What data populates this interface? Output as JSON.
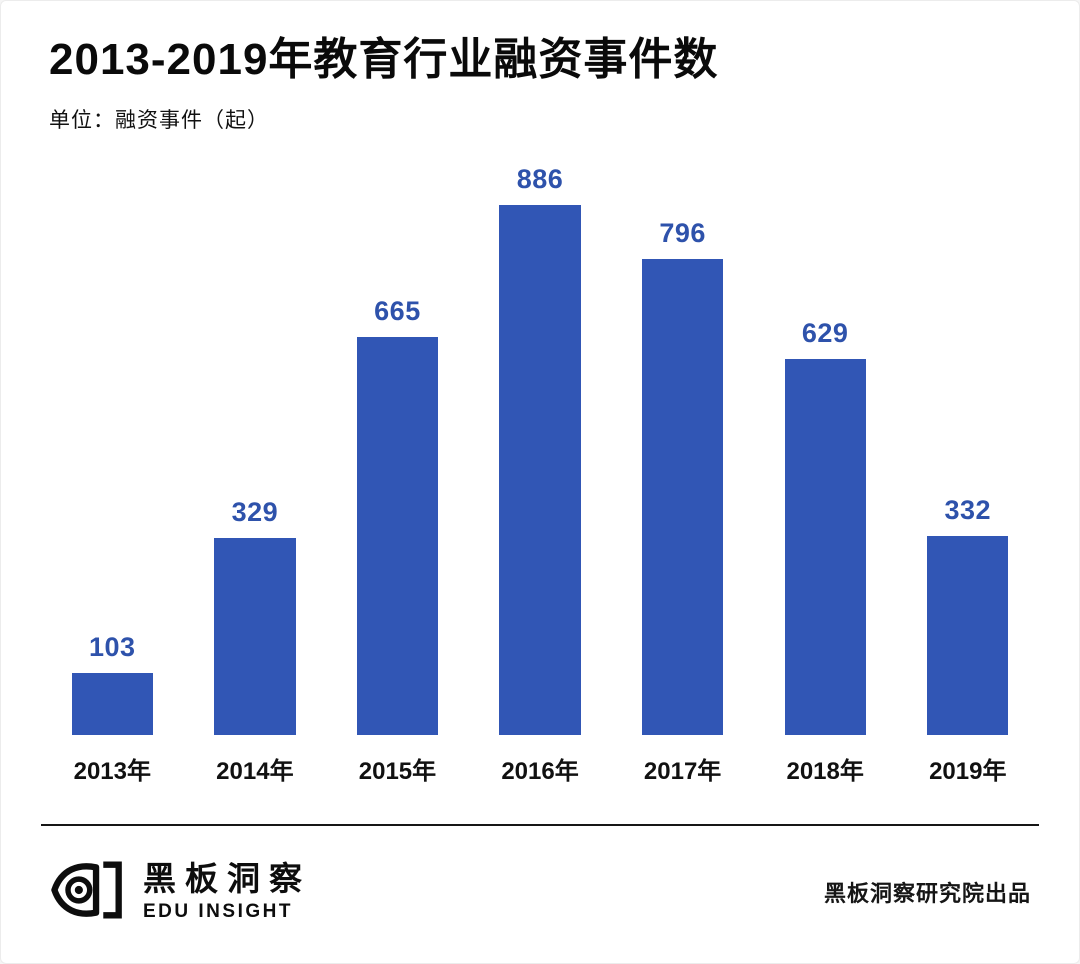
{
  "header": {
    "title": "2013-2019年教育行业融资事件数",
    "unit": "单位：融资事件（起）"
  },
  "chart_data": {
    "type": "bar",
    "title": "2013-2019年教育行业融资事件数",
    "unit_label": "单位：融资事件（起）",
    "categories": [
      "2013年",
      "2014年",
      "2015年",
      "2016年",
      "2017年",
      "2018年",
      "2019年"
    ],
    "values": [
      103,
      329,
      665,
      886,
      796,
      629,
      332
    ],
    "xlabel": "",
    "ylabel": "融资事件（起）",
    "ylim": [
      0,
      900
    ],
    "grid": false,
    "legend": "none",
    "value_labels_shown": true
  },
  "colors": {
    "bar": "#3156b5",
    "value_label": "#2e52ab"
  },
  "footer": {
    "logo_icon": "eye-bracket-logo-icon",
    "brand_cn": "黑板洞察",
    "brand_en": "EDU INSIGHT",
    "credit": "黑板洞察研究院出品"
  }
}
